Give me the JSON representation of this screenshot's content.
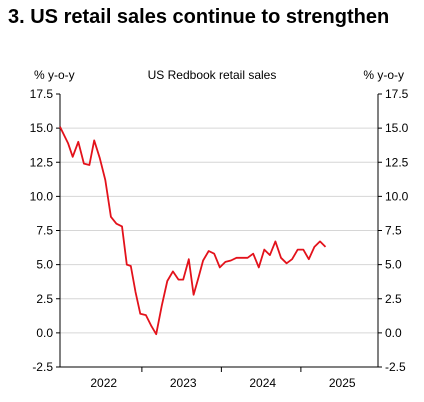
{
  "header": {
    "title": "3. US retail sales continue to strengthen"
  },
  "chart_data": {
    "type": "line",
    "title": "US Redbook retail sales",
    "ylabel_left": "% y-o-y",
    "ylabel_right": "% y-o-y",
    "ylim": [
      -2.5,
      17.5
    ],
    "yticks": [
      "-2.5",
      "0.0",
      "2.5",
      "5.0",
      "7.5",
      "10.0",
      "12.5",
      "15.0",
      "17.5"
    ],
    "ytick_values": [
      -2.5,
      0,
      2.5,
      5,
      7.5,
      10,
      12.5,
      15,
      17.5
    ],
    "xlim": [
      2021.85,
      2025.85
    ],
    "year_labels": [
      {
        "label": "2022",
        "center": 2022.4
      },
      {
        "label": "2023",
        "center": 2023.4
      },
      {
        "label": "2024",
        "center": 2024.4
      },
      {
        "label": "2025",
        "center": 2025.4
      }
    ],
    "year_boundaries": [
      2022.88,
      2023.88,
      2024.88
    ],
    "grid": true,
    "series": [
      {
        "name": "",
        "color": "#e3121b",
        "points": [
          [
            2021.85,
            15.1
          ],
          [
            2021.95,
            13.9
          ],
          [
            2022.01,
            12.9
          ],
          [
            2022.08,
            14.0
          ],
          [
            2022.15,
            12.4
          ],
          [
            2022.22,
            12.3
          ],
          [
            2022.28,
            14.1
          ],
          [
            2022.35,
            12.8
          ],
          [
            2022.42,
            11.2
          ],
          [
            2022.49,
            8.5
          ],
          [
            2022.56,
            8.0
          ],
          [
            2022.63,
            7.8
          ],
          [
            2022.69,
            5.0
          ],
          [
            2022.74,
            4.9
          ],
          [
            2022.8,
            3.0
          ],
          [
            2022.86,
            1.4
          ],
          [
            2022.93,
            1.3
          ],
          [
            2023.0,
            0.5
          ],
          [
            2023.06,
            -0.1
          ],
          [
            2023.13,
            2.0
          ],
          [
            2023.2,
            3.8
          ],
          [
            2023.27,
            4.5
          ],
          [
            2023.34,
            3.9
          ],
          [
            2023.4,
            3.9
          ],
          [
            2023.47,
            5.4
          ],
          [
            2023.53,
            2.8
          ],
          [
            2023.59,
            4.0
          ],
          [
            2023.65,
            5.3
          ],
          [
            2023.72,
            6.0
          ],
          [
            2023.79,
            5.8
          ],
          [
            2023.86,
            4.8
          ],
          [
            2023.93,
            5.2
          ],
          [
            2024.0,
            5.3
          ],
          [
            2024.07,
            5.5
          ],
          [
            2024.14,
            5.5
          ],
          [
            2024.21,
            5.5
          ],
          [
            2024.28,
            5.8
          ],
          [
            2024.35,
            4.8
          ],
          [
            2024.42,
            6.1
          ],
          [
            2024.49,
            5.7
          ],
          [
            2024.56,
            6.7
          ],
          [
            2024.63,
            5.5
          ],
          [
            2024.7,
            5.1
          ],
          [
            2024.77,
            5.4
          ],
          [
            2024.84,
            6.1
          ],
          [
            2024.91,
            6.1
          ],
          [
            2024.98,
            5.4
          ],
          [
            2025.05,
            6.3
          ],
          [
            2025.12,
            6.7
          ],
          [
            2025.19,
            6.3
          ]
        ]
      }
    ]
  }
}
